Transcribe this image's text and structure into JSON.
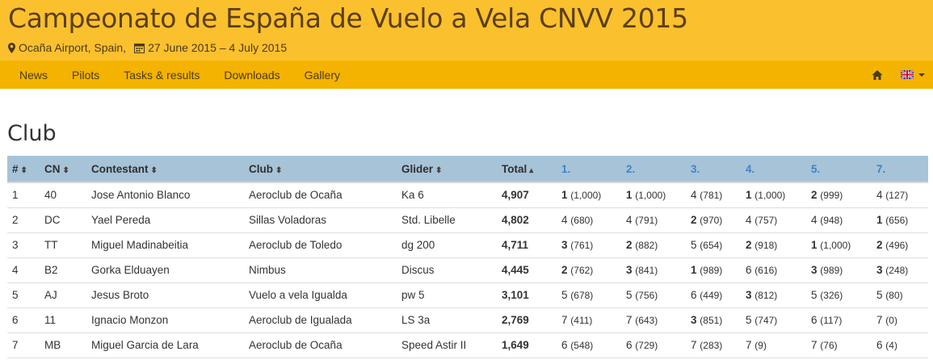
{
  "header": {
    "title": "Campeonato de España de Vuelo a Vela CNVV 2015",
    "location": "Ocaña Airport, Spain,",
    "dates": "27 June 2015 – 4 July 2015"
  },
  "nav": {
    "items": [
      "News",
      "Pilots",
      "Tasks & results",
      "Downloads",
      "Gallery"
    ]
  },
  "section_title": "Club",
  "table": {
    "columns": [
      "#",
      "CN",
      "Contestant",
      "Club",
      "Glider",
      "Total",
      "1.",
      "2.",
      "3.",
      "4.",
      "5.",
      "7."
    ],
    "sort_glyph": "⬍",
    "total_sort_glyph": "▴",
    "rows": [
      {
        "rank": "1",
        "cn": "40",
        "name": "Jose Antonio Blanco",
        "club": "Aeroclub de Ocaña",
        "glider": "Ka 6",
        "total": "4,907",
        "tasks": [
          {
            "r": "1",
            "p": "(1,000)",
            "b": true
          },
          {
            "r": "1",
            "p": "(1,000)",
            "b": true
          },
          {
            "r": "4",
            "p": "(781)",
            "b": false
          },
          {
            "r": "1",
            "p": "(1,000)",
            "b": true
          },
          {
            "r": "2",
            "p": "(999)",
            "b": true
          },
          {
            "r": "4",
            "p": "(127)",
            "b": false
          }
        ]
      },
      {
        "rank": "2",
        "cn": "DC",
        "name": "Yael Pereda",
        "club": "Sillas Voladoras",
        "glider": "Std. Libelle",
        "total": "4,802",
        "tasks": [
          {
            "r": "4",
            "p": "(680)",
            "b": false
          },
          {
            "r": "4",
            "p": "(791)",
            "b": false
          },
          {
            "r": "2",
            "p": "(970)",
            "b": true
          },
          {
            "r": "4",
            "p": "(757)",
            "b": false
          },
          {
            "r": "4",
            "p": "(948)",
            "b": false
          },
          {
            "r": "1",
            "p": "(656)",
            "b": true
          }
        ]
      },
      {
        "rank": "3",
        "cn": "TT",
        "name": "Miguel Madinabeitia",
        "club": "Aeroclub de Toledo",
        "glider": "dg 200",
        "total": "4,711",
        "tasks": [
          {
            "r": "3",
            "p": "(761)",
            "b": true
          },
          {
            "r": "2",
            "p": "(882)",
            "b": true
          },
          {
            "r": "5",
            "p": "(654)",
            "b": false
          },
          {
            "r": "2",
            "p": "(918)",
            "b": true
          },
          {
            "r": "1",
            "p": "(1,000)",
            "b": true
          },
          {
            "r": "2",
            "p": "(496)",
            "b": true
          }
        ]
      },
      {
        "rank": "4",
        "cn": "B2",
        "name": "Gorka Elduayen",
        "club": "Nimbus",
        "glider": "Discus",
        "total": "4,445",
        "tasks": [
          {
            "r": "2",
            "p": "(762)",
            "b": true
          },
          {
            "r": "3",
            "p": "(841)",
            "b": true
          },
          {
            "r": "1",
            "p": "(989)",
            "b": true
          },
          {
            "r": "6",
            "p": "(616)",
            "b": false
          },
          {
            "r": "3",
            "p": "(989)",
            "b": true
          },
          {
            "r": "3",
            "p": "(248)",
            "b": true
          }
        ]
      },
      {
        "rank": "5",
        "cn": "AJ",
        "name": "Jesus Broto",
        "club": "Vuelo a vela Igualda",
        "glider": "pw 5",
        "total": "3,101",
        "tasks": [
          {
            "r": "5",
            "p": "(678)",
            "b": false
          },
          {
            "r": "5",
            "p": "(756)",
            "b": false
          },
          {
            "r": "6",
            "p": "(449)",
            "b": false
          },
          {
            "r": "3",
            "p": "(812)",
            "b": true
          },
          {
            "r": "5",
            "p": "(326)",
            "b": false
          },
          {
            "r": "5",
            "p": "(80)",
            "b": false
          }
        ]
      },
      {
        "rank": "6",
        "cn": "11",
        "name": "Ignacio Monzon",
        "club": "Aeroclub de Igualada",
        "glider": "LS 3a",
        "total": "2,769",
        "tasks": [
          {
            "r": "7",
            "p": "(411)",
            "b": false
          },
          {
            "r": "7",
            "p": "(643)",
            "b": false
          },
          {
            "r": "3",
            "p": "(851)",
            "b": true
          },
          {
            "r": "5",
            "p": "(747)",
            "b": false
          },
          {
            "r": "6",
            "p": "(117)",
            "b": false
          },
          {
            "r": "7",
            "p": "(0)",
            "b": false
          }
        ]
      },
      {
        "rank": "7",
        "cn": "MB",
        "name": "Miguel Garcia de Lara",
        "club": "Aeroclub de Ocaña",
        "glider": "Speed Astir II",
        "total": "1,649",
        "tasks": [
          {
            "r": "6",
            "p": "(548)",
            "b": false
          },
          {
            "r": "6",
            "p": "(729)",
            "b": false
          },
          {
            "r": "7",
            "p": "(283)",
            "b": false
          },
          {
            "r": "7",
            "p": "(9)",
            "b": false
          },
          {
            "r": "7",
            "p": "(76)",
            "b": false
          },
          {
            "r": "6",
            "p": "(4)",
            "b": false
          }
        ]
      }
    ]
  },
  "colors": {
    "header_bg": "#fbc02d",
    "nav_bg": "#f3b300",
    "table_header_bg": "#a7c3d8",
    "task_link": "#3d86c6"
  },
  "icons": [
    "map-marker-icon",
    "calendar-icon",
    "home-icon",
    "uk-flag-icon",
    "caret-down-icon"
  ]
}
